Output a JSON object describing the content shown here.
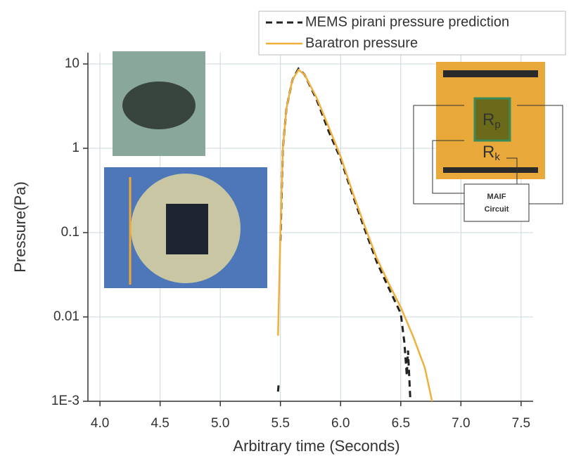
{
  "chart_data": {
    "type": "line",
    "xlabel": "Arbitrary time (Seconds)",
    "ylabel": "Pressure(Pa)",
    "log_y": true,
    "grid": true,
    "legend": "top-right",
    "xlim": [
      3.9,
      7.6
    ],
    "ylim": [
      0.001,
      13.6
    ],
    "xticks": [
      {
        "value": 4,
        "label": "4.0"
      },
      4.5,
      {
        "value": 5,
        "label": "5.0"
      },
      5.5,
      {
        "value": 6,
        "label": "6.0"
      },
      6.5,
      {
        "value": 7,
        "label": "7.0"
      },
      7.5
    ],
    "yticks": [
      {
        "value": 0.001,
        "label": "1E-3"
      },
      0.01,
      0.1,
      1,
      10
    ],
    "series": [
      {
        "name": "MEMS pirani pressure prediction",
        "color": "#222222",
        "dashed": true,
        "x": [
          5.48,
          5.485,
          5.49,
          5.5,
          5.52,
          5.55,
          5.6,
          5.65,
          5.7,
          5.8,
          5.9,
          6.0,
          6.1,
          6.2,
          6.3,
          6.4,
          6.5,
          6.53,
          6.55,
          6.56,
          6.58
        ],
        "values": [
          0.0013,
          0.0016,
          null,
          0.08,
          1,
          3,
          6.5,
          8.8,
          7.5,
          3.8,
          1.6,
          0.75,
          0.28,
          0.11,
          0.045,
          0.022,
          0.011,
          0.005,
          0.002,
          0.004,
          0.001
        ]
      },
      {
        "name": "Baratron pressure",
        "color": "#f0b13c",
        "dashed": false,
        "x": [
          5.48,
          5.5,
          5.52,
          5.55,
          5.6,
          5.65,
          5.7,
          5.8,
          5.9,
          6.0,
          6.1,
          6.2,
          6.3,
          6.4,
          6.5,
          6.6,
          6.7,
          6.76
        ],
        "values": [
          0.006,
          0.1,
          1,
          3,
          6.5,
          8.5,
          7.5,
          4,
          1.8,
          0.8,
          0.3,
          0.12,
          0.05,
          0.025,
          0.013,
          0.006,
          0.0025,
          0.001
        ]
      }
    ],
    "inset": {
      "resistors": [
        {
          "symbol": "R",
          "subscript": "p"
        },
        {
          "symbol": "R",
          "subscript": "k"
        }
      ],
      "circuit": [
        "MAIF",
        "Circuit"
      ]
    }
  }
}
